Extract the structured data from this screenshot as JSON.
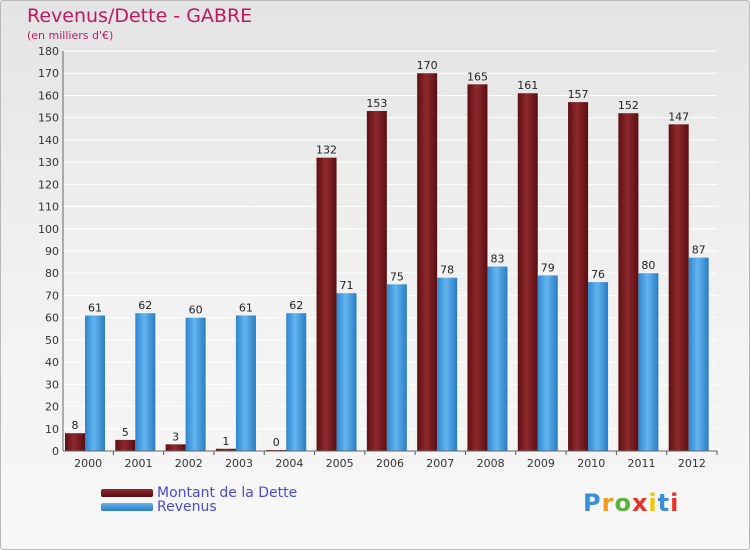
{
  "header": {
    "title": "Revenus/Dette - GABRE",
    "subtitle": "(en milliers d'€)"
  },
  "chart_data": {
    "type": "bar",
    "categories": [
      "2000",
      "2001",
      "2002",
      "2003",
      "2004",
      "2005",
      "2006",
      "2007",
      "2008",
      "2009",
      "2010",
      "2011",
      "2012"
    ],
    "series": [
      {
        "name": "Montant de la Dette",
        "color": "#7b1f22",
        "values": [
          8,
          5,
          3,
          1,
          0,
          132,
          153,
          170,
          165,
          161,
          157,
          152,
          147
        ]
      },
      {
        "name": "Revenus",
        "color": "#4da3e6",
        "values": [
          61,
          62,
          60,
          61,
          62,
          71,
          75,
          78,
          83,
          79,
          76,
          80,
          87
        ]
      }
    ],
    "ylim": [
      0,
      180
    ],
    "ytick_step": 10,
    "grid": true,
    "legend_position": "bottom-left"
  },
  "branding": {
    "logo_letters": [
      "P",
      "r",
      "o",
      "x",
      "i",
      "t",
      "i"
    ],
    "logo_colors": [
      "#3a8fd8",
      "#f29a1f",
      "#5bb33c",
      "#e5332a",
      "#f2c500",
      "#3a8fd8",
      "#e5332a"
    ]
  }
}
